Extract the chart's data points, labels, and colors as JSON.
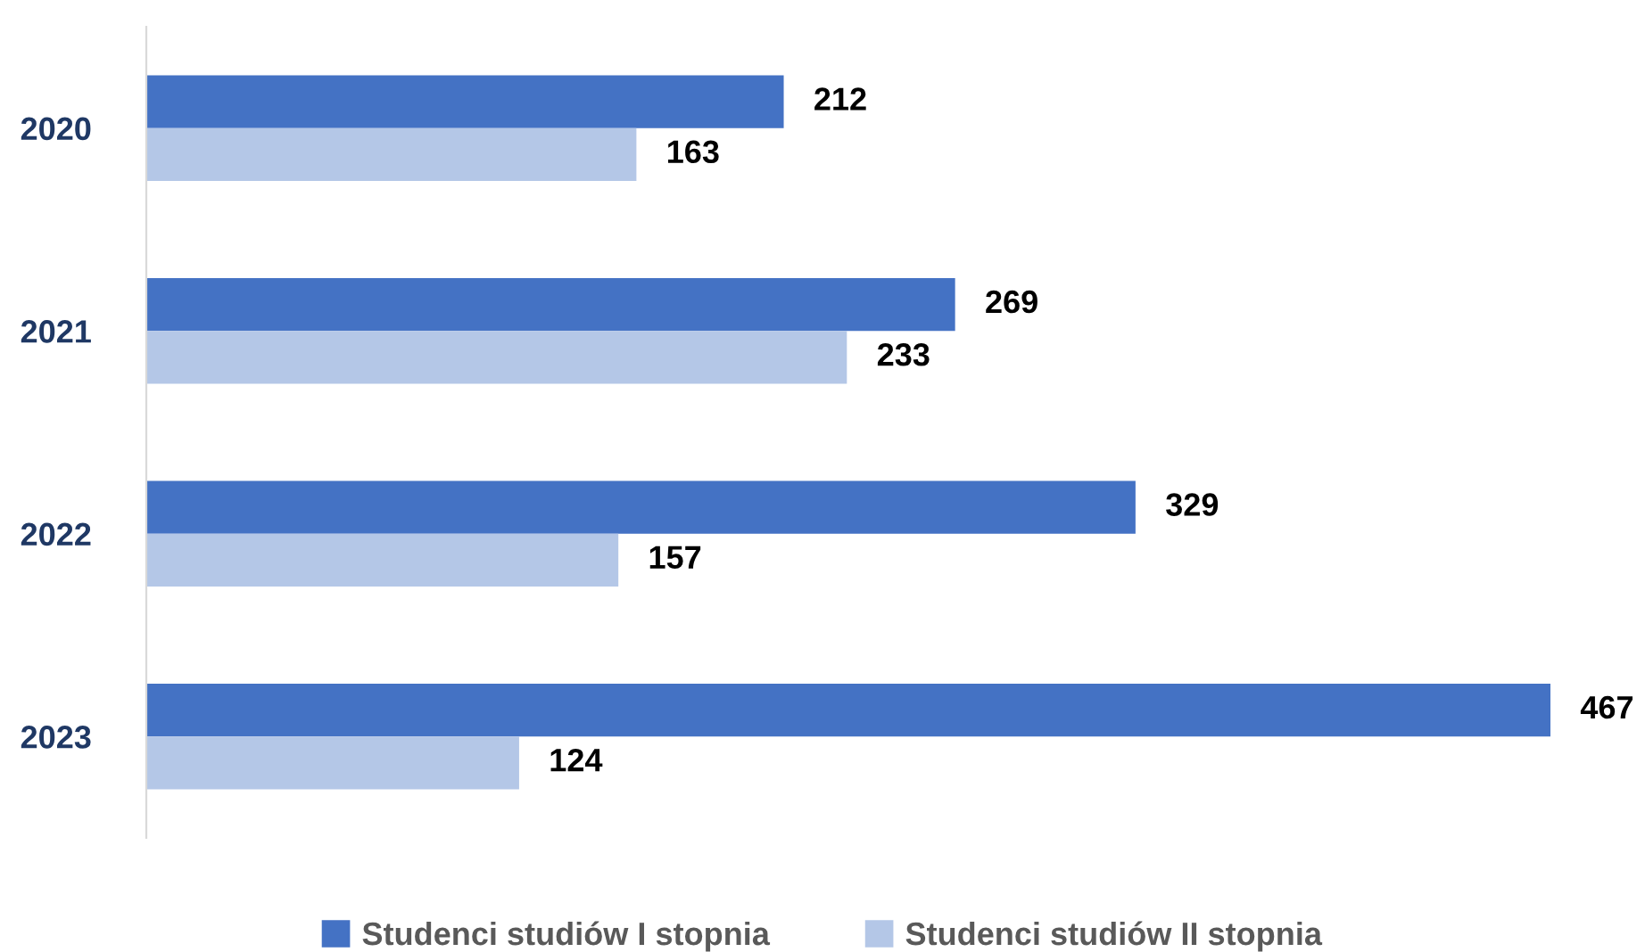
{
  "chart_data": {
    "type": "bar",
    "orientation": "horizontal",
    "categories": [
      "2020",
      "2021",
      "2022",
      "2023"
    ],
    "series": [
      {
        "name": "Studenci studiów I stopnia",
        "color": "#4472c4",
        "values": [
          212,
          269,
          329,
          467
        ]
      },
      {
        "name": "Studenci studiów II stopnia",
        "color": "#b4c7e7",
        "values": [
          163,
          233,
          157,
          124
        ]
      }
    ],
    "data_labels": true,
    "legend": "bottom",
    "grid": false
  }
}
